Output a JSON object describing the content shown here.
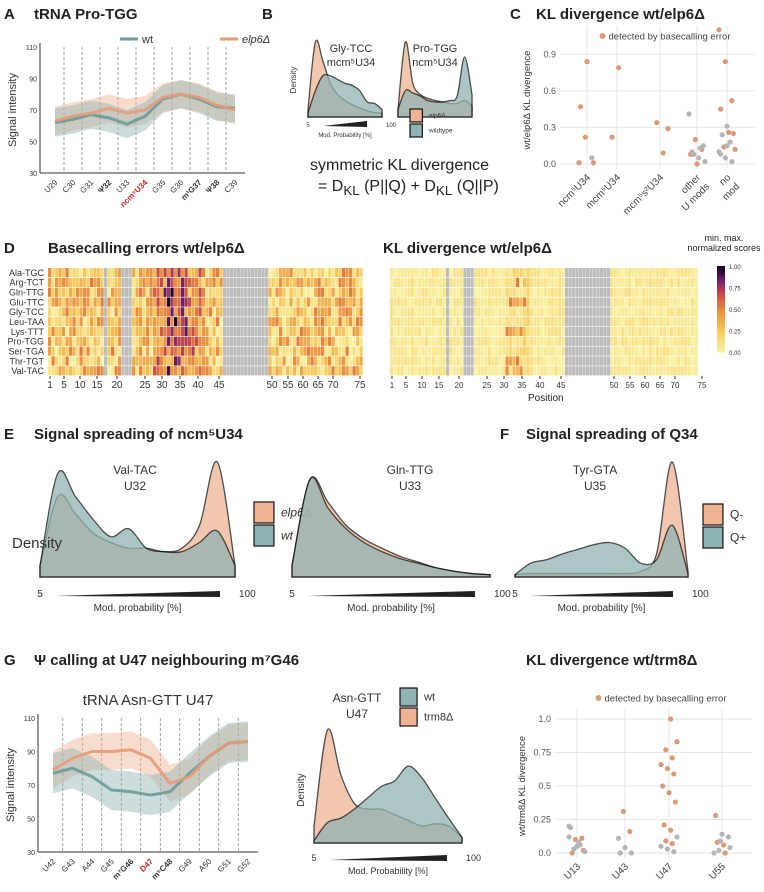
{
  "colors": {
    "wt": "#6b9a98",
    "mutant": "#e59a78",
    "wt_fill": "#8fb3b2",
    "mutant_fill": "#f0b393",
    "error_point": "#d99a76",
    "other_point": "#b5b5b5",
    "grey_cell": "#bdbdbd"
  },
  "panels": {
    "A": {
      "letter": "A",
      "title": "tRNA Pro-TGG"
    },
    "B": {
      "letter": "B",
      "formula_line1": "symmetric KL divergence",
      "formula_line2": "= D<sub>KL</sub> (P||Q) + D<sub>KL</sub> (Q||P)"
    },
    "C": {
      "letter": "C",
      "title": "KL divergence wt/elp6Δ"
    },
    "D": {
      "letter": "D",
      "title_left": "Basecalling errors wt/elp6Δ",
      "title_right": "KL divergence wt/elp6Δ",
      "colorbar_title": "min. max. normalized scores",
      "xlabel": "Position"
    },
    "E": {
      "letter": "E",
      "title": "Signal spreading of ncm⁵U34"
    },
    "F": {
      "letter": "F",
      "title": "Signal spreading of Q34"
    },
    "G": {
      "letter": "G",
      "title": "Ψ calling at U47 neighbouring m⁷G46",
      "right_title": "KL divergence wt/trm8Δ"
    }
  },
  "chart_data": [
    {
      "id": "A",
      "type": "line",
      "title": "tRNA Pro-TGG",
      "ylabel": "Signal intensity",
      "ylim": [
        30,
        110
      ],
      "yticks": [
        30,
        50,
        70,
        90,
        110
      ],
      "categories": [
        "U29",
        "C30",
        "G31",
        "Ψ32",
        "U33",
        "ncm⁵U34",
        "G35",
        "G36",
        "m¹G37",
        "Ψ38",
        "C39"
      ],
      "highlight": "ncm⁵U34",
      "bold": [
        "Ψ32",
        "m¹G37",
        "Ψ38"
      ],
      "series": [
        {
          "name": "wt",
          "values": [
            62,
            64,
            67,
            65,
            61,
            66,
            77,
            80,
            77,
            72,
            71
          ],
          "spread": 9
        },
        {
          "name": "elp6Δ",
          "values": [
            63,
            66,
            68,
            71,
            68,
            70,
            78,
            80,
            78,
            73,
            70
          ],
          "spread": 9
        }
      ]
    },
    {
      "id": "B1",
      "type": "area",
      "title": "Gly-TCC",
      "subtitle": "mcm⁵U34",
      "ylabel": "Density",
      "xlabel": "Mod. Probability [%]",
      "xlim": [
        5,
        100
      ],
      "series": [
        {
          "name": "elp6Δ",
          "values": [
            0.1,
            1.0,
            0.75,
            0.45,
            0.3,
            0.22,
            0.16,
            0.12,
            0.08,
            0.06,
            0.05
          ]
        },
        {
          "name": "wildtype",
          "values": [
            0.05,
            0.35,
            0.55,
            0.55,
            0.5,
            0.45,
            0.42,
            0.35,
            0.2,
            0.18,
            0.1
          ]
        }
      ]
    },
    {
      "id": "B2",
      "type": "area",
      "title": "Pro-TGG",
      "subtitle": "ncm⁵U34",
      "xlim": [
        5,
        100
      ],
      "legend": [
        "elp6Δ",
        "wildtype"
      ],
      "series": [
        {
          "name": "elp6Δ",
          "values": [
            0.1,
            1.0,
            0.45,
            0.3,
            0.25,
            0.22,
            0.2,
            0.18,
            0.18,
            0.22,
            0.15
          ]
        },
        {
          "name": "wildtype",
          "values": [
            0.1,
            0.35,
            0.32,
            0.28,
            0.22,
            0.2,
            0.2,
            0.22,
            0.28,
            0.8,
            0.3
          ]
        }
      ]
    },
    {
      "id": "C",
      "type": "scatter",
      "ylabel": "wt/elp6Δ KL divergence",
      "ylim": [
        0,
        1.05
      ],
      "yticks": [
        0.0,
        0.3,
        0.6,
        0.9
      ],
      "legend": "detected by basecalling error",
      "categories": [
        "ncm⁵U34",
        "mcm⁵U34",
        "mcm⁵s²U34",
        "other\nU mods",
        "no\nmod"
      ],
      "points": [
        [
          0,
          0.01,
          1
        ],
        [
          0,
          0.22,
          1
        ],
        [
          0,
          0.05,
          0
        ],
        [
          0,
          0.47,
          1
        ],
        [
          0,
          0.84,
          1
        ],
        [
          0,
          0.01,
          1
        ],
        [
          1,
          0.22,
          1
        ],
        [
          1,
          0.79,
          1
        ],
        [
          2,
          0.29,
          1
        ],
        [
          2,
          0.34,
          1
        ],
        [
          2,
          0.09,
          1
        ],
        [
          3,
          0.41,
          0
        ],
        [
          3,
          0.2,
          1
        ],
        [
          3,
          0.12,
          1
        ],
        [
          3,
          0.08,
          1
        ],
        [
          3,
          0.0,
          1
        ],
        [
          3,
          0.15,
          0
        ],
        [
          3,
          0.1,
          0
        ],
        [
          3,
          0.05,
          0
        ],
        [
          3,
          0.02,
          0
        ],
        [
          3,
          0.08,
          0
        ],
        [
          3,
          0.13,
          0
        ],
        [
          4,
          1.1,
          1
        ],
        [
          4,
          0.84,
          1
        ],
        [
          4,
          0.52,
          1
        ],
        [
          4,
          0.45,
          1
        ],
        [
          4,
          0.31,
          0
        ],
        [
          4,
          0.25,
          1
        ],
        [
          4,
          0.24,
          0
        ],
        [
          4,
          0.26,
          1
        ],
        [
          4,
          0.12,
          1
        ],
        [
          4,
          0.14,
          1
        ],
        [
          4,
          0.18,
          0
        ],
        [
          4,
          0.1,
          0
        ],
        [
          4,
          0.05,
          0
        ],
        [
          4,
          0.02,
          0
        ],
        [
          4,
          0.08,
          0
        ],
        [
          4,
          0.15,
          0
        ]
      ]
    },
    {
      "id": "D",
      "type": "heatmap",
      "rows": [
        "Ala-TGC",
        "Arg-TCT",
        "Gln-TTG",
        "Glu-TTC",
        "Gly-TCC",
        "Leu-TAA",
        "Lys-TTT",
        "Pro-TGG",
        "Ser-TGA",
        "Thr-TGT",
        "Val-TAC"
      ],
      "xticks": [
        1,
        5,
        10,
        15,
        20,
        25,
        30,
        35,
        40,
        45,
        50,
        55,
        60,
        65,
        70,
        75
      ],
      "colorbar_ticks": [
        "1.00",
        "0.75",
        "0.50",
        "0.25",
        "0.00"
      ]
    },
    {
      "id": "E1",
      "type": "area",
      "title": "Val-TAC",
      "subtitle": "U32",
      "ylabel": "Density",
      "xlabel": "Mod. probability [%]",
      "xlim": [
        5,
        100
      ],
      "legend": [
        "elp6Δ",
        "wt"
      ],
      "series": [
        {
          "name": "elp6Δ",
          "values": [
            0.1,
            0.7,
            0.55,
            0.38,
            0.3,
            0.25,
            0.25,
            0.22,
            0.25,
            0.45,
            1.0,
            0.1
          ]
        },
        {
          "name": "wt",
          "values": [
            0.1,
            0.9,
            0.7,
            0.5,
            0.35,
            0.42,
            0.25,
            0.22,
            0.22,
            0.3,
            0.4,
            0.1
          ]
        }
      ]
    },
    {
      "id": "E2",
      "type": "area",
      "title": "Gln-TTG",
      "subtitle": "U33",
      "xlabel": "Mod. probability [%]",
      "xlim": [
        5,
        100
      ],
      "series": [
        {
          "name": "elp6Δ",
          "values": [
            0.1,
            0.85,
            0.65,
            0.45,
            0.33,
            0.25,
            0.18,
            0.13,
            0.08,
            0.05,
            0.03,
            0.02
          ]
        },
        {
          "name": "wt",
          "values": [
            0.1,
            0.85,
            0.6,
            0.42,
            0.3,
            0.22,
            0.16,
            0.12,
            0.08,
            0.05,
            0.03,
            0.02
          ]
        }
      ]
    },
    {
      "id": "F",
      "type": "area",
      "title": "Tyr-GTA",
      "subtitle": "U35",
      "xlabel": "Mod. probability [%]",
      "xlim": [
        5,
        100
      ],
      "legend": [
        "Q-",
        "Q+"
      ],
      "series": [
        {
          "name": "Q-",
          "values": [
            0.02,
            0.03,
            0.03,
            0.03,
            0.03,
            0.03,
            0.03,
            0.03,
            0.05,
            0.2,
            1.0,
            0.05
          ]
        },
        {
          "name": "Q+",
          "values": [
            0.02,
            0.12,
            0.15,
            0.2,
            0.24,
            0.28,
            0.3,
            0.25,
            0.12,
            0.15,
            0.45,
            0.03
          ]
        }
      ]
    },
    {
      "id": "G1",
      "type": "line",
      "title": "tRNA Asn-GTT U47",
      "ylabel": "Signal intensity",
      "ylim": [
        30,
        110
      ],
      "yticks": [
        30,
        50,
        70,
        90,
        110
      ],
      "categories": [
        "U42",
        "G43",
        "A44",
        "G45",
        "m⁷G46",
        "D47",
        "m⁵C48",
        "G49",
        "A50",
        "G51",
        "G52"
      ],
      "highlight": "D47",
      "bold": [
        "m⁷G46",
        "m⁵C48"
      ],
      "series": [
        {
          "name": "wt",
          "values": [
            77,
            80,
            75,
            67,
            66,
            64,
            66,
            77,
            87,
            95,
            96
          ],
          "spread": 12
        },
        {
          "name": "trm8Δ",
          "values": [
            79,
            86,
            90,
            90,
            91,
            86,
            71,
            75,
            87,
            95,
            96
          ],
          "spread": 11
        }
      ]
    },
    {
      "id": "G2",
      "type": "area",
      "title": "Asn-GTT",
      "subtitle": "U47",
      "ylabel": "Density",
      "xlabel": "Mod. Probability [%]",
      "xlim": [
        5,
        100
      ],
      "legend": [
        "wt",
        "trm8Δ"
      ],
      "series": [
        {
          "name": "trm8Δ",
          "values": [
            0.15,
            1.0,
            0.6,
            0.35,
            0.3,
            0.3,
            0.25,
            0.2,
            0.15,
            0.17,
            0.15,
            0.05
          ]
        },
        {
          "name": "wt",
          "values": [
            0.02,
            0.18,
            0.22,
            0.3,
            0.4,
            0.5,
            0.55,
            0.68,
            0.58,
            0.4,
            0.22,
            0.05
          ]
        }
      ]
    },
    {
      "id": "G3",
      "type": "scatter",
      "title": "KL divergence wt/trm8Δ",
      "ylabel": "wt/trm8Δ KL divergence",
      "ylim": [
        0,
        1.0
      ],
      "yticks": [
        0.0,
        0.25,
        0.5,
        0.75,
        1.0
      ],
      "legend": "detected by basecalling error",
      "categories": [
        "U13",
        "U43",
        "U47",
        "U55"
      ],
      "points": [
        [
          0,
          0.2,
          0
        ],
        [
          0,
          0.1,
          1
        ],
        [
          0,
          0.11,
          1
        ],
        [
          0,
          0.19,
          0
        ],
        [
          0,
          0.05,
          0
        ],
        [
          0,
          0.02,
          1
        ],
        [
          0,
          0.0,
          1
        ],
        [
          0,
          0.08,
          0
        ],
        [
          0,
          0.01,
          0
        ],
        [
          0,
          0.03,
          0
        ],
        [
          0,
          0.06,
          0
        ],
        [
          0,
          0.12,
          0
        ],
        [
          1,
          0.31,
          1
        ],
        [
          1,
          0.16,
          1
        ],
        [
          1,
          0.11,
          0
        ],
        [
          1,
          0.04,
          0
        ],
        [
          1,
          0.0,
          0
        ],
        [
          1,
          0.0,
          0
        ],
        [
          2,
          1.0,
          1
        ],
        [
          2,
          0.83,
          1
        ],
        [
          2,
          0.77,
          1
        ],
        [
          2,
          0.71,
          1
        ],
        [
          2,
          0.66,
          1
        ],
        [
          2,
          0.63,
          1
        ],
        [
          2,
          0.59,
          1
        ],
        [
          2,
          0.5,
          1
        ],
        [
          2,
          0.45,
          1
        ],
        [
          2,
          0.38,
          1
        ],
        [
          2,
          0.21,
          1
        ],
        [
          2,
          0.17,
          1
        ],
        [
          2,
          0.12,
          0
        ],
        [
          2,
          0.09,
          1
        ],
        [
          2,
          0.07,
          1
        ],
        [
          2,
          0.05,
          0
        ],
        [
          2,
          0.03,
          0
        ],
        [
          2,
          0.01,
          0
        ],
        [
          3,
          0.28,
          1
        ],
        [
          3,
          0.14,
          0
        ],
        [
          3,
          0.12,
          0
        ],
        [
          3,
          0.08,
          1
        ],
        [
          3,
          0.06,
          1
        ],
        [
          3,
          0.04,
          0
        ],
        [
          3,
          0.02,
          0
        ],
        [
          3,
          0.0,
          1
        ],
        [
          3,
          0.0,
          0
        ],
        [
          3,
          0.09,
          0
        ]
      ]
    }
  ]
}
